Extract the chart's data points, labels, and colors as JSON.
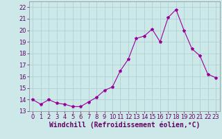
{
  "x": [
    0,
    1,
    2,
    3,
    4,
    5,
    6,
    7,
    8,
    9,
    10,
    11,
    12,
    13,
    14,
    15,
    16,
    17,
    18,
    19,
    20,
    21,
    22,
    23
  ],
  "y": [
    14.0,
    13.6,
    14.0,
    13.7,
    13.6,
    13.4,
    13.4,
    13.8,
    14.2,
    14.8,
    15.1,
    16.5,
    17.5,
    19.3,
    19.5,
    20.1,
    19.0,
    21.1,
    21.8,
    20.0,
    18.4,
    17.8,
    16.2,
    15.9
  ],
  "line_color": "#990099",
  "marker": "*",
  "marker_size": 3,
  "bg_color": "#cce8e8",
  "grid_color": "#aacece",
  "xlabel": "Windchill (Refroidissement éolien,°C)",
  "xlabel_fontsize": 7,
  "tick_fontsize": 6,
  "ylim": [
    13,
    22.5
  ],
  "xlim": [
    -0.5,
    23.5
  ],
  "yticks": [
    13,
    14,
    15,
    16,
    17,
    18,
    19,
    20,
    21,
    22
  ],
  "xticks": [
    0,
    1,
    2,
    3,
    4,
    5,
    6,
    7,
    8,
    9,
    10,
    11,
    12,
    13,
    14,
    15,
    16,
    17,
    18,
    19,
    20,
    21,
    22,
    23
  ]
}
